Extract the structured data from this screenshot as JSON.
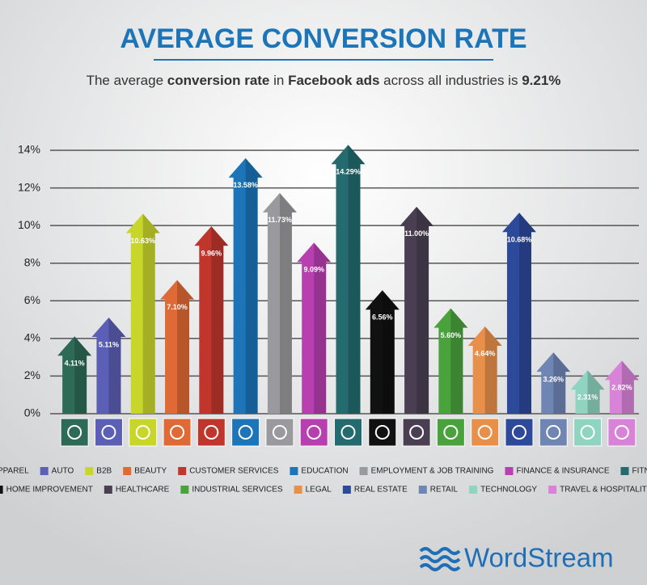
{
  "chart_data": {
    "type": "bar",
    "title": "AVERAGE CONVERSION RATE",
    "subtitle": [
      {
        "text": "The average ",
        "bold": false
      },
      {
        "text": "conversion rate",
        "bold": true
      },
      {
        "text": " in ",
        "bold": false
      },
      {
        "text": "Facebook ads",
        "bold": true
      },
      {
        "text": " across all industries is ",
        "bold": false
      },
      {
        "text": "9.21%",
        "bold": true
      }
    ],
    "categories": [
      "APPAREL",
      "AUTO",
      "B2B",
      "BEAUTY",
      "CUSTOMER SERVICES",
      "EDUCATION",
      "EMPLOYMENT & JOB TRAINING",
      "FINANCE & INSURANCE",
      "FITNESS",
      "HOME IMPROVEMENT",
      "HEALTHCARE",
      "INDUSTRIAL SERVICES",
      "LEGAL",
      "REAL ESTATE",
      "RETAIL",
      "TECHNOLOGY",
      "TRAVEL & HOSPITALITY"
    ],
    "values": [
      4.11,
      5.11,
      10.63,
      7.1,
      9.96,
      13.58,
      11.73,
      9.09,
      14.29,
      6.56,
      11.0,
      5.6,
      4.64,
      10.68,
      3.26,
      2.31,
      2.82
    ],
    "value_labels": [
      "4.11%",
      "5.11%",
      "10.63%",
      "7.10%",
      "9.96%",
      "13.58%",
      "11.73%",
      "9.09%",
      "14.29%",
      "6.56%",
      "11.00%",
      "5.60%",
      "4.64%",
      "10.68%",
      "3.26%",
      "2.31%",
      "2.82%"
    ],
    "colors": [
      "#2e6b57",
      "#5b5fb5",
      "#c8d62b",
      "#e06a35",
      "#c0362c",
      "#1b75b8",
      "#9a9a9e",
      "#b83fb0",
      "#236b6e",
      "#111111",
      "#4a3f52",
      "#4aa23c",
      "#e8904a",
      "#2d4a9a",
      "#6f86b5",
      "#8fd4bf",
      "#d883d8"
    ],
    "ylim": [
      0,
      14
    ],
    "yticks": [
      {
        "value": 0,
        "label": "0%"
      },
      {
        "value": 2,
        "label": "2%"
      },
      {
        "value": 4,
        "label": "4%"
      },
      {
        "value": 6,
        "label": "6%"
      },
      {
        "value": 8,
        "label": "8%"
      },
      {
        "value": 10,
        "label": "10%"
      },
      {
        "value": 12,
        "label": "12%"
      },
      {
        "value": 14,
        "label": "14%"
      }
    ],
    "grid": true,
    "brand": "WordStream"
  }
}
